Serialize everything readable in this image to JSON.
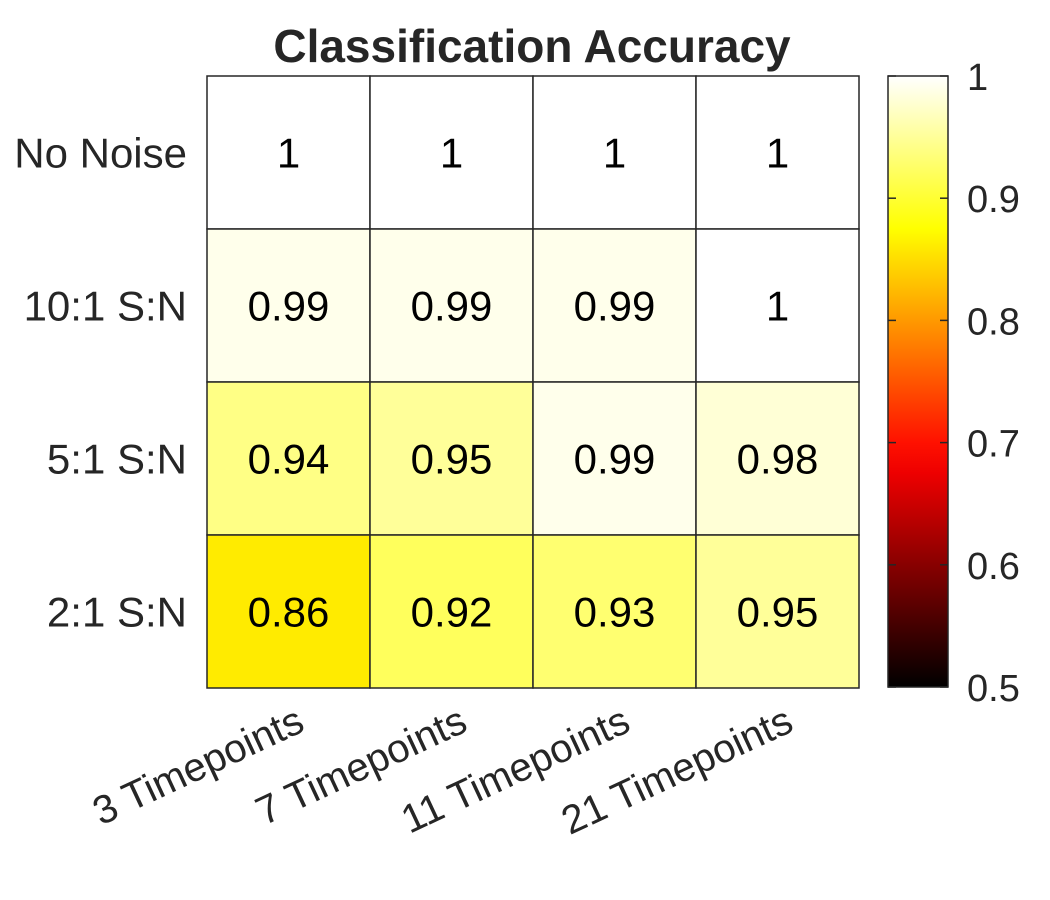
{
  "chart_data": {
    "type": "heatmap",
    "title": "Classification Accuracy",
    "rows": [
      "No Noise",
      "10:1 S:N",
      "5:1 S:N",
      "2:1 S:N"
    ],
    "columns": [
      "3 Timepoints",
      "7 Timepoints",
      "11 Timepoints",
      "21 Timepoints"
    ],
    "values": [
      [
        1,
        1,
        1,
        1
      ],
      [
        0.99,
        0.99,
        0.99,
        1
      ],
      [
        0.94,
        0.95,
        0.99,
        0.98
      ],
      [
        0.86,
        0.92,
        0.93,
        0.95
      ]
    ],
    "value_labels": [
      [
        "1",
        "1",
        "1",
        "1"
      ],
      [
        "0.99",
        "0.99",
        "0.99",
        "1"
      ],
      [
        "0.94",
        "0.95",
        "0.99",
        "0.98"
      ],
      [
        "0.86",
        "0.92",
        "0.93",
        "0.95"
      ]
    ],
    "colorbar": {
      "colormap": "hot",
      "range": [
        0.5,
        1
      ],
      "ticks": [
        0.5,
        0.6,
        0.7,
        0.8,
        0.9,
        1
      ],
      "tick_labels": [
        "0.5",
        "0.6",
        "0.7",
        "0.8",
        "0.9",
        "1"
      ],
      "position": "right"
    }
  }
}
